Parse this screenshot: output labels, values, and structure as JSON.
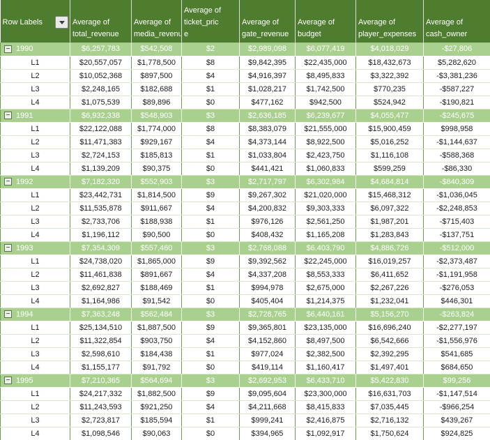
{
  "colors": {
    "header_bg": "#4F7D30",
    "header_text": "#FFFFFF",
    "subtotal_bg": "#A9D08E",
    "grid_vertical": "#6C9A4E",
    "grid_horizontal": "#D9E7CA",
    "text": "#1B1B1B"
  },
  "icons": {
    "filter": "dropdown-arrow-icon",
    "collapse": "minus-box-icon"
  },
  "glyphs": {
    "collapse_minus": "−"
  },
  "header": {
    "cols": [
      {
        "label": "Row Labels"
      },
      {
        "label": "Average of\ntotal_revenue"
      },
      {
        "label": "Average of\nmedia_revenue"
      },
      {
        "label": "Average of\nticket_pric\ne"
      },
      {
        "label": "Average of\ngate_revenue"
      },
      {
        "label": "Average of\nbudget"
      },
      {
        "label": "Average of\nplayer_expenses"
      },
      {
        "label": "Average of\ncash_owner"
      }
    ]
  },
  "groups": [
    {
      "year": "1990",
      "totals": [
        "$6,257,783",
        "$542,508",
        "$2",
        "$2,989,098",
        "$6,077,419",
        "$4,018,029",
        "-$27,806"
      ],
      "rows": [
        {
          "label": "L1",
          "values": [
            "$20,557,057",
            "$1,778,500",
            "$8",
            "$9,842,395",
            "$22,435,000",
            "$18,432,673",
            "$5,282,620"
          ]
        },
        {
          "label": "L2",
          "values": [
            "$10,052,368",
            "$897,500",
            "$4",
            "$4,916,397",
            "$8,495,833",
            "$3,322,392",
            "-$3,381,236"
          ]
        },
        {
          "label": "L3",
          "values": [
            "$2,248,165",
            "$182,688",
            "$1",
            "$1,028,217",
            "$1,742,500",
            "$770,235",
            "-$587,227"
          ]
        },
        {
          "label": "L4",
          "values": [
            "$1,075,539",
            "$89,896",
            "$0",
            "$477,162",
            "$942,500",
            "$524,942",
            "-$190,821"
          ]
        }
      ]
    },
    {
      "year": "1991",
      "totals": [
        "$6,932,338",
        "$548,903",
        "$3",
        "$2,636,185",
        "$6,239,677",
        "$4,055,477",
        "-$245,675"
      ],
      "rows": [
        {
          "label": "L1",
          "values": [
            "$22,122,088",
            "$1,774,000",
            "$8",
            "$8,383,079",
            "$21,555,000",
            "$15,900,459",
            "$998,958"
          ]
        },
        {
          "label": "L2",
          "values": [
            "$11,471,383",
            "$929,167",
            "$4",
            "$4,373,144",
            "$8,922,500",
            "$5,016,252",
            "-$1,144,637"
          ]
        },
        {
          "label": "L3",
          "values": [
            "$2,724,153",
            "$185,813",
            "$1",
            "$1,033,804",
            "$2,423,750",
            "$1,116,108",
            "-$588,368"
          ]
        },
        {
          "label": "L4",
          "values": [
            "$1,139,209",
            "$90,375",
            "$0",
            "$441,421",
            "$1,060,833",
            "$599,259",
            "-$86,330"
          ]
        }
      ]
    },
    {
      "year": "1992",
      "totals": [
        "$7,182,320",
        "$552,903",
        "$3",
        "$2,717,797",
        "$6,302,984",
        "$4,684,814",
        "-$840,309"
      ],
      "rows": [
        {
          "label": "L1",
          "values": [
            "$23,442,731",
            "$1,814,500",
            "$9",
            "$9,267,302",
            "$21,020,000",
            "$15,468,312",
            "-$1,036,045"
          ]
        },
        {
          "label": "L2",
          "values": [
            "$11,535,878",
            "$911,667",
            "$4",
            "$4,200,832",
            "$9,303,333",
            "$6,097,322",
            "-$2,248,853"
          ]
        },
        {
          "label": "L3",
          "values": [
            "$2,733,706",
            "$188,938",
            "$1",
            "$976,126",
            "$2,561,250",
            "$1,987,201",
            "-$715,403"
          ]
        },
        {
          "label": "L4",
          "values": [
            "$1,196,112",
            "$90,500",
            "$0",
            "$408,432",
            "$1,165,208",
            "$1,283,843",
            "-$137,751"
          ]
        }
      ]
    },
    {
      "year": "1993",
      "totals": [
        "$7,354,309",
        "$557,460",
        "$3",
        "$2,768,088",
        "$6,403,790",
        "$4,886,726",
        "-$512,000"
      ],
      "rows": [
        {
          "label": "L1",
          "values": [
            "$24,738,020",
            "$1,865,000",
            "$9",
            "$9,392,562",
            "$22,245,000",
            "$16,019,257",
            "-$2,373,487"
          ]
        },
        {
          "label": "L2",
          "values": [
            "$11,461,838",
            "$891,667",
            "$4",
            "$4,337,208",
            "$8,553,333",
            "$6,411,652",
            "-$1,191,958"
          ]
        },
        {
          "label": "L3",
          "values": [
            "$2,692,827",
            "$188,469",
            "$1",
            "$994,978",
            "$2,675,000",
            "$2,267,226",
            "-$276,053"
          ]
        },
        {
          "label": "L4",
          "values": [
            "$1,164,986",
            "$91,542",
            "$0",
            "$405,404",
            "$1,214,375",
            "$1,232,041",
            "$446,301"
          ]
        }
      ]
    },
    {
      "year": "1994",
      "totals": [
        "$7,363,248",
        "$562,484",
        "$3",
        "$2,728,765",
        "$6,440,161",
        "$5,156,270",
        "-$263,824"
      ],
      "rows": [
        {
          "label": "L1",
          "values": [
            "$25,134,510",
            "$1,887,500",
            "$9",
            "$9,365,801",
            "$23,135,000",
            "$16,696,240",
            "-$2,277,197"
          ]
        },
        {
          "label": "L2",
          "values": [
            "$11,322,854",
            "$903,750",
            "$4",
            "$4,152,860",
            "$8,497,500",
            "$6,542,666",
            "-$1,556,976"
          ]
        },
        {
          "label": "L3",
          "values": [
            "$2,598,610",
            "$184,438",
            "$1",
            "$977,024",
            "$2,382,500",
            "$2,392,295",
            "$541,685"
          ]
        },
        {
          "label": "L4",
          "values": [
            "$1,155,177",
            "$91,792",
            "$0",
            "$419,114",
            "$1,160,417",
            "$1,497,401",
            "$684,650"
          ]
        }
      ]
    },
    {
      "year": "1995",
      "totals": [
        "$7,210,365",
        "$564,694",
        "$3",
        "$2,692,953",
        "$6,433,710",
        "$5,422,830",
        "$99,256"
      ],
      "rows": [
        {
          "label": "L1",
          "values": [
            "$24,217,332",
            "$1,882,500",
            "$9",
            "$9,095,604",
            "$23,300,000",
            "$16,631,703",
            "-$1,147,514"
          ]
        },
        {
          "label": "L2",
          "values": [
            "$11,243,593",
            "$921,250",
            "$4",
            "$4,211,668",
            "$8,415,833",
            "$7,035,445",
            "-$966,254"
          ]
        },
        {
          "label": "L3",
          "values": [
            "$2,723,817",
            "$185,594",
            "$1",
            "$999,241",
            "$2,416,875",
            "$2,716,132",
            "$439,267"
          ]
        },
        {
          "label": "L4",
          "values": [
            "$1,098,546",
            "$90,063",
            "$0",
            "$394,965",
            "$1,092,917",
            "$1,750,624",
            "$924,825"
          ]
        }
      ]
    }
  ]
}
